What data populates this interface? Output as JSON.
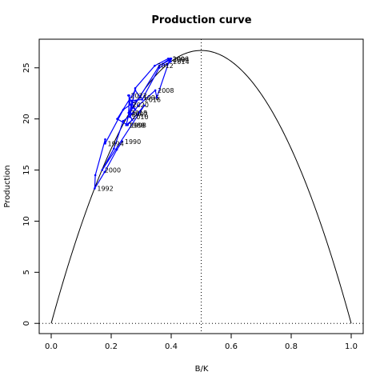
{
  "chart_data": {
    "type": "scatter",
    "title": "Production curve",
    "xlabel": "B/K",
    "ylabel": "Production",
    "xlim": [
      -0.04,
      1.04
    ],
    "ylim": [
      -1.0,
      27.8
    ],
    "xticks": [
      "0.0",
      "0.2",
      "0.4",
      "0.6",
      "0.8",
      "1.0"
    ],
    "xtick_values": [
      0.0,
      0.2,
      0.4,
      0.6,
      0.8,
      1.0
    ],
    "yticks": [
      "0",
      "5",
      "10",
      "15",
      "20",
      "25"
    ],
    "ytick_values": [
      0,
      5,
      10,
      15,
      20,
      25
    ],
    "curve": {
      "type": "parabola",
      "peak_x": 0.5,
      "peak_y": 26.7,
      "color": "#000000"
    },
    "reference_lines": {
      "vertical_x": 0.5,
      "horizontal_y": 0,
      "style": "dotted"
    },
    "series": [
      {
        "color": "#0000ff",
        "points": [
          {
            "label": "1990",
            "x": 0.237,
            "y": 17.8
          },
          {
            "label": "",
            "x": 0.219,
            "y": 17.0
          },
          {
            "label": "",
            "x": 0.178,
            "y": 14.8
          },
          {
            "label": "1992",
            "x": 0.145,
            "y": 13.2
          },
          {
            "label": "",
            "x": 0.147,
            "y": 14.5
          },
          {
            "label": "",
            "x": 0.18,
            "y": 18.0
          },
          {
            "label": "1994",
            "x": 0.18,
            "y": 17.6
          },
          {
            "label": "",
            "x": 0.24,
            "y": 20.9
          },
          {
            "label": "1996",
            "x": 0.298,
            "y": 22.1
          },
          {
            "label": "",
            "x": 0.28,
            "y": 22.8
          },
          {
            "label": "",
            "x": 0.22,
            "y": 20.0
          },
          {
            "label": "1998",
            "x": 0.255,
            "y": 19.4
          },
          {
            "label": "",
            "x": 0.31,
            "y": 21.3
          },
          {
            "label": "2000",
            "x": 0.17,
            "y": 15.0
          },
          {
            "label": "",
            "x": 0.209,
            "y": 17.1
          },
          {
            "label": "",
            "x": 0.24,
            "y": 19.8
          },
          {
            "label": "",
            "x": 0.275,
            "y": 20.6
          },
          {
            "label": "2002",
            "x": 0.26,
            "y": 20.5
          },
          {
            "label": "",
            "x": 0.36,
            "y": 25.2
          },
          {
            "label": "",
            "x": 0.4,
            "y": 25.9
          },
          {
            "label": "2004",
            "x": 0.398,
            "y": 25.8
          },
          {
            "label": "",
            "x": 0.372,
            "y": 25.4
          },
          {
            "label": "2006",
            "x": 0.396,
            "y": 25.9
          },
          {
            "label": "",
            "x": 0.352,
            "y": 22.1
          },
          {
            "label": "2008",
            "x": 0.347,
            "y": 22.8
          },
          {
            "label": "",
            "x": 0.29,
            "y": 21.3
          },
          {
            "label": "2010",
            "x": 0.262,
            "y": 20.2
          },
          {
            "label": "",
            "x": 0.28,
            "y": 23.0
          },
          {
            "label": "2012",
            "x": 0.345,
            "y": 25.2
          },
          {
            "label": "",
            "x": 0.39,
            "y": 25.9
          },
          {
            "label": "2014",
            "x": 0.398,
            "y": 25.6
          },
          {
            "label": "",
            "x": 0.36,
            "y": 25.0
          },
          {
            "label": "2016",
            "x": 0.303,
            "y": 21.9
          },
          {
            "label": "",
            "x": 0.27,
            "y": 21.8
          },
          {
            "label": "1988",
            "x": 0.25,
            "y": 19.4
          },
          {
            "label": "",
            "x": 0.27,
            "y": 19.9
          },
          {
            "label": "2018",
            "x": 0.258,
            "y": 20.6
          },
          {
            "label": "",
            "x": 0.26,
            "y": 22.3
          },
          {
            "label": "2020",
            "x": 0.263,
            "y": 21.4
          },
          {
            "label": "",
            "x": 0.28,
            "y": 20.9
          },
          {
            "label": "2022",
            "x": 0.257,
            "y": 22.3
          }
        ]
      }
    ],
    "grid": false
  }
}
